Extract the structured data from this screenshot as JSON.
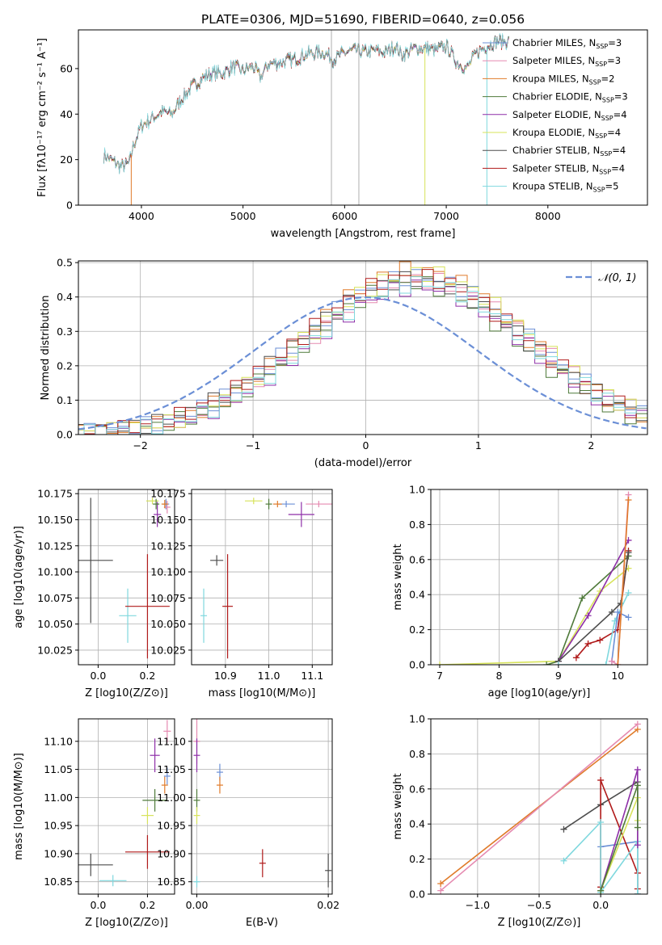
{
  "figure": {
    "title": "PLATE=0306, MJD=51690, FIBERID=0640, z=0.056",
    "colors": {
      "Chabrier MILES": "#6b8fd6",
      "Salpeter MILES": "#e58ab0",
      "Kroupa MILES": "#e07b2a",
      "Chabrier ELODIE": "#4f7a3a",
      "Salpeter ELODIE": "#8e2fa8",
      "Kroupa ELODIE": "#d7e35a",
      "Chabrier STELIB": "#4d4d4d",
      "Salpeter STELIB": "#b01a1a",
      "Kroupa STELIB": "#7fd8de"
    }
  },
  "chart_data": [
    {
      "id": "spectrum",
      "type": "line",
      "xlabel": "wavelength [Angstrom, rest frame]",
      "ylabel": "Flux [fλ10⁻¹⁷ erg cm⁻² s⁻¹ A⁻¹]",
      "xlim": [
        3380,
        8980
      ],
      "ylim": [
        0,
        77
      ],
      "xticks": [
        4000,
        5000,
        6000,
        7000,
        8000
      ],
      "yticks": [
        0,
        20,
        40,
        60
      ],
      "legend_position": "right",
      "legend": [
        {
          "name": "Chabrier MILES",
          "label": "Chabrier MILES, N",
          "sub": "SSP",
          "tail": "=3"
        },
        {
          "name": "Salpeter MILES",
          "label": "Salpeter MILES, N",
          "sub": "SSP",
          "tail": "=3"
        },
        {
          "name": "Kroupa MILES",
          "label": "Kroupa MILES, N",
          "sub": "SSP",
          "tail": "=2"
        },
        {
          "name": "Chabrier ELODIE",
          "label": "Chabrier ELODIE, N",
          "sub": "SSP",
          "tail": "=3"
        },
        {
          "name": "Salpeter ELODIE",
          "label": "Salpeter ELODIE, N",
          "sub": "SSP",
          "tail": "=4"
        },
        {
          "name": "Kroupa ELODIE",
          "label": "Kroupa ELODIE, N",
          "sub": "SSP",
          "tail": "=4"
        },
        {
          "name": "Chabrier STELIB",
          "label": "Chabrier STELIB, N",
          "sub": "SSP",
          "tail": "=4"
        },
        {
          "name": "Salpeter STELIB",
          "label": "Salpeter STELIB, N",
          "sub": "SSP",
          "tail": "=4"
        },
        {
          "name": "Kroupa STELIB",
          "label": "Kroupa STELIB, N",
          "sub": "SSP",
          "tail": "=5"
        }
      ],
      "continuum": [
        [
          3630,
          22
        ],
        [
          3700,
          20
        ],
        [
          3800,
          17
        ],
        [
          3880,
          18
        ],
        [
          3920,
          26
        ],
        [
          4000,
          35
        ],
        [
          4100,
          38
        ],
        [
          4200,
          41
        ],
        [
          4300,
          40
        ],
        [
          4400,
          47
        ],
        [
          4500,
          52
        ],
        [
          4600,
          56
        ],
        [
          4700,
          58
        ],
        [
          4800,
          58
        ],
        [
          4900,
          61
        ],
        [
          5000,
          59
        ],
        [
          5100,
          61
        ],
        [
          5170,
          56
        ],
        [
          5250,
          62
        ],
        [
          5400,
          63
        ],
        [
          5500,
          64
        ],
        [
          5600,
          66
        ],
        [
          5700,
          67
        ],
        [
          5800,
          67
        ],
        [
          5890,
          64
        ],
        [
          6000,
          67
        ],
        [
          6100,
          68
        ],
        [
          6200,
          67
        ],
        [
          6300,
          68
        ],
        [
          6400,
          67
        ],
        [
          6500,
          70
        ],
        [
          6563,
          66
        ],
        [
          6700,
          69
        ],
        [
          6800,
          69
        ],
        [
          6900,
          68
        ],
        [
          7000,
          70
        ],
        [
          7100,
          63
        ],
        [
          7200,
          60
        ],
        [
          7300,
          67
        ],
        [
          7400,
          70
        ],
        [
          7500,
          72
        ],
        [
          7600,
          72
        ]
      ],
      "spikes": [
        [
          5870,
          77
        ],
        [
          6140,
          77
        ]
      ],
      "dropouts": [
        3900,
        6790,
        7400
      ]
    },
    {
      "id": "residuals",
      "type": "histogram",
      "xlabel": "(data-model)/error",
      "ylabel": "Normed distribution",
      "xlim": [
        -2.55,
        2.5
      ],
      "ylim": [
        0,
        0.505
      ],
      "xticks": [
        -2,
        -1,
        0,
        1,
        2
      ],
      "yticks": [
        0.0,
        0.1,
        0.2,
        0.3,
        0.4,
        0.5
      ],
      "bin_width": 0.1,
      "gaussian_label": "𝒩(0, 1)",
      "gaussian_mean": 0,
      "gaussian_sigma": 1,
      "series_order": [
        "Chabrier MILES",
        "Salpeter MILES",
        "Kroupa MILES",
        "Chabrier ELODIE",
        "Salpeter ELODIE",
        "Kroupa ELODIE",
        "Chabrier STELIB",
        "Salpeter STELIB",
        "Kroupa STELIB"
      ],
      "peak_heights": [
        0.46,
        0.45,
        0.48,
        0.44,
        0.43,
        0.47,
        0.45,
        0.46,
        0.44
      ]
    },
    {
      "id": "age-vs-z",
      "type": "errorbar",
      "xlabel": "Z [log10(Z/Z⊙)]",
      "ylabel": "age  [log10(age/yr)]",
      "xlim": [
        -0.08,
        0.31
      ],
      "ylim": [
        10.011,
        10.179
      ],
      "xticks": [
        0.0,
        0.2
      ],
      "yticks": [
        10.025,
        10.05,
        10.075,
        10.1,
        10.125,
        10.15,
        10.175
      ],
      "points": [
        {
          "s": "Chabrier STELIB",
          "x": -0.03,
          "y": 10.111,
          "xe": 0.09,
          "ye": 0.06
        },
        {
          "s": "Kroupa STELIB",
          "x": 0.12,
          "y": 10.058,
          "xe": 0.035,
          "ye": 0.026
        },
        {
          "s": "Salpeter STELIB",
          "x": 0.2,
          "y": 10.067,
          "xe": 0.09,
          "ye": 0.05
        },
        {
          "s": "Kroupa ELODIE",
          "x": 0.22,
          "y": 10.168,
          "xe": 0.025,
          "ye": 0.003
        },
        {
          "s": "Salpeter ELODIE",
          "x": 0.24,
          "y": 10.155,
          "xe": 0.015,
          "ye": 0.012
        },
        {
          "s": "Chabrier ELODIE",
          "x": 0.235,
          "y": 10.165,
          "xe": 0.01,
          "ye": 0.005
        },
        {
          "s": "Chabrier MILES",
          "x": 0.275,
          "y": 10.165,
          "xe": 0.01,
          "ye": 0.005
        },
        {
          "s": "Salpeter MILES",
          "x": 0.28,
          "y": 10.162,
          "xe": 0.01,
          "ye": 0.006
        },
        {
          "s": "Kroupa MILES",
          "x": 0.27,
          "y": 10.165,
          "xe": 0.01,
          "ye": 0.004
        }
      ]
    },
    {
      "id": "age-vs-mass",
      "type": "errorbar",
      "xlabel": "mass [log10(M/M⊙)]",
      "ylabel": "",
      "xlim": [
        10.822,
        11.146
      ],
      "ylim": [
        10.011,
        10.179
      ],
      "xticks": [
        10.9,
        11.0,
        11.1
      ],
      "yticks": [
        10.025,
        10.05,
        10.075,
        10.1,
        10.125,
        10.15,
        10.175
      ],
      "points": [
        {
          "s": "Kroupa STELIB",
          "x": 10.85,
          "y": 10.058,
          "xe": 0.006,
          "ye": 0.026
        },
        {
          "s": "Chabrier STELIB",
          "x": 10.88,
          "y": 10.111,
          "xe": 0.015,
          "ye": 0.005
        },
        {
          "s": "Salpeter STELIB",
          "x": 10.905,
          "y": 10.067,
          "xe": 0.012,
          "ye": 0.05
        },
        {
          "s": "Kroupa ELODIE",
          "x": 10.965,
          "y": 10.168,
          "xe": 0.02,
          "ye": 0.003
        },
        {
          "s": "Chabrier ELODIE",
          "x": 11.0,
          "y": 10.165,
          "xe": 0.005,
          "ye": 0.005
        },
        {
          "s": "Salpeter ELODIE",
          "x": 11.075,
          "y": 10.155,
          "xe": 0.03,
          "ye": 0.012
        },
        {
          "s": "Chabrier MILES",
          "x": 11.04,
          "y": 10.165,
          "xe": 0.02,
          "ye": 0.003
        },
        {
          "s": "Salpeter MILES",
          "x": 11.115,
          "y": 10.165,
          "xe": 0.03,
          "ye": 0.002
        },
        {
          "s": "Kroupa MILES",
          "x": 11.02,
          "y": 10.165,
          "xe": 0.01,
          "ye": 0.003
        }
      ]
    },
    {
      "id": "mass-weight-vs-age",
      "type": "line",
      "xlabel": "age  [log10(age/yr)]",
      "ylabel": "mass weight",
      "xlim": [
        6.85,
        10.5
      ],
      "ylim": [
        0,
        1
      ],
      "xticks": [
        7,
        8,
        9,
        10
      ],
      "yticks": [
        0.0,
        0.2,
        0.4,
        0.6,
        0.8,
        1.0
      ],
      "series": [
        {
          "s": "Kroupa ELODIE",
          "x": [
            7.0,
            9.0,
            9.7,
            10.18
          ],
          "y": [
            0.0,
            0.02,
            0.42,
            0.55
          ]
        },
        {
          "s": "Chabrier ELODIE",
          "x": [
            8.8,
            9.0,
            9.4,
            10.18
          ],
          "y": [
            0.0,
            0.02,
            0.38,
            0.62
          ]
        },
        {
          "s": "Salpeter ELODIE",
          "x": [
            9.0,
            9.5,
            10.18
          ],
          "y": [
            0.02,
            0.28,
            0.71
          ]
        },
        {
          "s": "Salpeter STELIB",
          "x": [
            9.3,
            9.5,
            9.7,
            10.0,
            10.18
          ],
          "y": [
            0.04,
            0.12,
            0.14,
            0.2,
            0.65
          ]
        },
        {
          "s": "Chabrier STELIB",
          "x": [
            9.0,
            9.9,
            10.05,
            10.18
          ],
          "y": [
            0.02,
            0.3,
            0.35,
            0.64
          ]
        },
        {
          "s": "Kroupa STELIB",
          "x": [
            9.0,
            9.8,
            9.95,
            10.18
          ],
          "y": [
            0.0,
            0.0,
            0.25,
            0.41
          ]
        },
        {
          "s": "Chabrier MILES",
          "x": [
            9.9,
            10.0,
            10.18
          ],
          "y": [
            0.02,
            0.3,
            0.27
          ]
        },
        {
          "s": "Salpeter MILES",
          "x": [
            9.9,
            10.0,
            10.18
          ],
          "y": [
            0.02,
            0.0,
            0.97
          ]
        },
        {
          "s": "Kroupa MILES",
          "x": [
            10.0,
            10.18
          ],
          "y": [
            0.0,
            0.94
          ]
        }
      ]
    },
    {
      "id": "mass-vs-z",
      "type": "errorbar",
      "xlabel": "Z [log10(Z/Z⊙)]",
      "ylabel": "mass [log10(M/M⊙)]",
      "xlim": [
        -0.08,
        0.31
      ],
      "ylim": [
        10.828,
        11.14
      ],
      "xticks": [
        0.0,
        0.2
      ],
      "yticks": [
        10.85,
        10.9,
        10.95,
        11.0,
        11.05,
        11.1
      ],
      "points": [
        {
          "s": "Chabrier STELIB",
          "x": -0.03,
          "y": 10.88,
          "xe": 0.09,
          "ye": 0.02
        },
        {
          "s": "Kroupa STELIB",
          "x": 0.06,
          "y": 10.852,
          "xe": 0.055,
          "ye": 0.01
        },
        {
          "s": "Salpeter STELIB",
          "x": 0.2,
          "y": 10.903,
          "xe": 0.09,
          "ye": 0.03
        },
        {
          "s": "Kroupa ELODIE",
          "x": 0.2,
          "y": 10.968,
          "xe": 0.025,
          "ye": 0.015
        },
        {
          "s": "Chabrier ELODIE",
          "x": 0.23,
          "y": 10.995,
          "xe": 0.05,
          "ye": 0.02
        },
        {
          "s": "Salpeter ELODIE",
          "x": 0.23,
          "y": 11.075,
          "xe": 0.02,
          "ye": 0.03
        },
        {
          "s": "Kroupa MILES",
          "x": 0.27,
          "y": 11.022,
          "xe": 0.01,
          "ye": 0.015
        },
        {
          "s": "Chabrier MILES",
          "x": 0.28,
          "y": 11.038,
          "xe": 0.01,
          "ye": 0.015
        },
        {
          "s": "Salpeter MILES",
          "x": 0.28,
          "y": 11.118,
          "xe": 0.015,
          "ye": 0.02
        }
      ]
    },
    {
      "id": "mass-vs-ebv",
      "type": "errorbar",
      "xlabel": "E(B-V)",
      "ylabel": "",
      "xlim": [
        -0.0008,
        0.0206
      ],
      "ylim": [
        10.828,
        11.14
      ],
      "xticks": [
        0.0,
        0.02
      ],
      "yticks": [
        10.85,
        10.9,
        10.95,
        11.0,
        11.05,
        11.1
      ],
      "points": [
        {
          "s": "Salpeter MILES",
          "x": 0.0,
          "y": 11.1,
          "xe": 0.0,
          "ye": 0.04
        },
        {
          "s": "Salpeter ELODIE",
          "x": 0.0,
          "y": 11.075,
          "xe": 0.0,
          "ye": 0.03
        },
        {
          "s": "Chabrier ELODIE",
          "x": 0.0,
          "y": 10.995,
          "xe": 0.0,
          "ye": 0.02
        },
        {
          "s": "Kroupa ELODIE",
          "x": 0.0,
          "y": 10.968,
          "xe": 0.0,
          "ye": 0.015
        },
        {
          "s": "Kroupa STELIB",
          "x": 0.0,
          "y": 10.85,
          "xe": 0.0,
          "ye": 0.01
        },
        {
          "s": "Chabrier MILES",
          "x": 0.0035,
          "y": 11.045,
          "xe": 0.0,
          "ye": 0.015
        },
        {
          "s": "Kroupa MILES",
          "x": 0.0035,
          "y": 11.022,
          "xe": 0.0,
          "ye": 0.015
        },
        {
          "s": "Salpeter STELIB",
          "x": 0.01,
          "y": 10.883,
          "xe": 0.0,
          "ye": 0.025
        },
        {
          "s": "Chabrier STELIB",
          "x": 0.02,
          "y": 10.87,
          "xe": 0.0,
          "ye": 0.03
        }
      ]
    },
    {
      "id": "mass-weight-vs-z",
      "type": "line",
      "xlabel": "Z [log10(Z/Z⊙)]",
      "ylabel": "mass weight",
      "xlim": [
        -1.38,
        0.38
      ],
      "ylim": [
        0,
        1
      ],
      "xticks": [
        -1.0,
        -0.5,
        0.0
      ],
      "yticks": [
        0.0,
        0.2,
        0.4,
        0.6,
        0.8,
        1.0
      ],
      "series": [
        {
          "s": "Kroupa MILES",
          "x": [
            -1.3,
            0.3
          ],
          "y": [
            0.06,
            0.94
          ]
        },
        {
          "s": "Salpeter MILES",
          "x": [
            -1.3,
            0.3
          ],
          "y": [
            0.02,
            0.97
          ]
        },
        {
          "s": "Chabrier MILES",
          "x": [
            0.0,
            0.3,
            0.3
          ],
          "y": [
            0.27,
            0.3,
            0.0
          ]
        },
        {
          "s": "Chabrier STELIB",
          "x": [
            -0.3,
            0.0,
            0.3,
            0.3
          ],
          "y": [
            0.37,
            0.51,
            0.64,
            0.0
          ]
        },
        {
          "s": "Salpeter STELIB",
          "x": [
            0.0,
            0.0,
            0.3,
            0.3
          ],
          "y": [
            0.04,
            0.65,
            0.12,
            0.03
          ]
        },
        {
          "s": "Kroupa STELIB",
          "x": [
            -0.3,
            0.0,
            0.0,
            0.3,
            0.3
          ],
          "y": [
            0.19,
            0.41,
            0.01,
            0.3,
            0.0
          ]
        },
        {
          "s": "Salpeter ELODIE",
          "x": [
            0.0,
            0.3,
            0.3
          ],
          "y": [
            0.02,
            0.71,
            0.28
          ]
        },
        {
          "s": "Kroupa ELODIE",
          "x": [
            0.0,
            0.3,
            0.3
          ],
          "y": [
            0.02,
            0.55,
            0.42
          ]
        },
        {
          "s": "Chabrier ELODIE",
          "x": [
            0.0,
            0.3,
            0.3
          ],
          "y": [
            0.02,
            0.62,
            0.38
          ]
        }
      ]
    }
  ]
}
